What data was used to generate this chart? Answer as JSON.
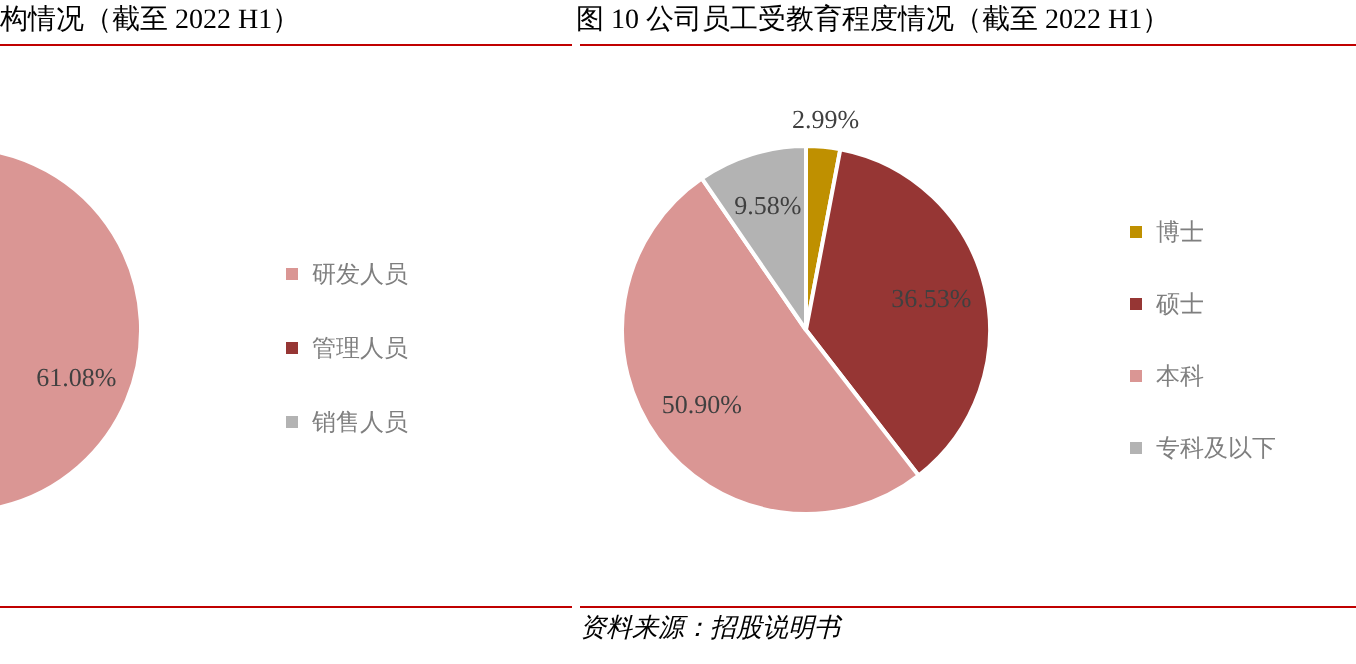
{
  "chart_data": [
    {
      "type": "pie",
      "title": "构情况（截至 2022 H1）",
      "categories": [
        "研发人员",
        "管理人员",
        "销售人员"
      ],
      "values": [
        61.08,
        null,
        null
      ],
      "colors": [
        "#da9694",
        "#963634",
        "#b3b3b3"
      ],
      "value_labels": [
        "61.08%",
        null,
        null
      ],
      "legend": "right"
    },
    {
      "type": "pie",
      "title": "图 10  公司员工受教育程度情况（截至 2022 H1）",
      "categories": [
        "博士",
        "硕士",
        "本科",
        "专科及以下"
      ],
      "values": [
        2.99,
        36.53,
        50.9,
        9.58
      ],
      "colors": [
        "#bf9000",
        "#963634",
        "#da9694",
        "#b3b3b3"
      ],
      "value_labels": [
        "2.99%",
        "36.53%",
        "50.90%",
        "9.58%"
      ],
      "legend": "right",
      "annotations": [
        "资料来源：招股说明书"
      ]
    }
  ]
}
